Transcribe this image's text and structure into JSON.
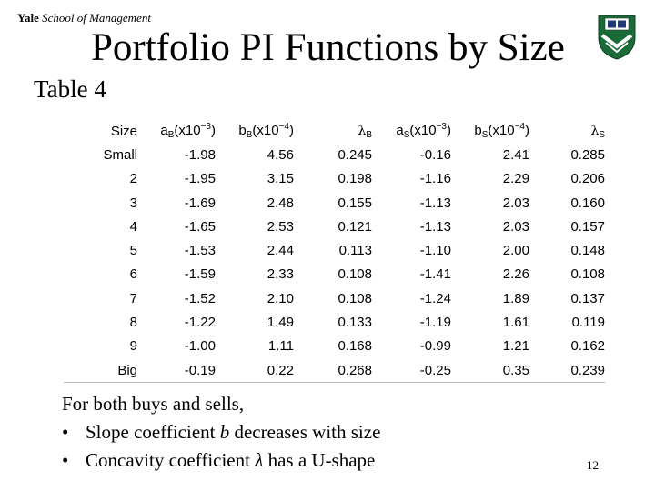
{
  "brand": {
    "bold": "Yale",
    "italic": "School of Management"
  },
  "title": "Portfolio PI Functions by Size",
  "subtitle": "Table 4",
  "table": {
    "headers": {
      "size": "Size",
      "aB": {
        "base": "a",
        "sub": "B",
        "pre": "(x10",
        "sup": "−3",
        "post": ")"
      },
      "bB": {
        "base": "b",
        "sub": "B",
        "pre": "(x10",
        "sup": "−4",
        "post": ")"
      },
      "lamB": {
        "base": "λ",
        "sub": "B"
      },
      "aS": {
        "base": "a",
        "sub": "S",
        "pre": "(x10",
        "sup": "−3",
        "post": ")"
      },
      "bS": {
        "base": "b",
        "sub": "S",
        "pre": "(x10",
        "sup": "−4",
        "post": ")"
      },
      "lamS": {
        "base": "λ",
        "sub": "S"
      }
    },
    "rows": [
      [
        "Small",
        "-1.98",
        "4.56",
        "0.245",
        "-0.16",
        "2.41",
        "0.285"
      ],
      [
        "2",
        "-1.95",
        "3.15",
        "0.198",
        "-1.16",
        "2.29",
        "0.206"
      ],
      [
        "3",
        "-1.69",
        "2.48",
        "0.155",
        "-1.13",
        "2.03",
        "0.160"
      ],
      [
        "4",
        "-1.65",
        "2.53",
        "0.121",
        "-1.13",
        "2.03",
        "0.157"
      ],
      [
        "5",
        "-1.53",
        "2.44",
        "0.113",
        "-1.10",
        "2.00",
        "0.148"
      ],
      [
        "6",
        "-1.59",
        "2.33",
        "0.108",
        "-1.41",
        "2.26",
        "0.108"
      ],
      [
        "7",
        "-1.52",
        "2.10",
        "0.108",
        "-1.24",
        "1.89",
        "0.137"
      ],
      [
        "8",
        "-1.22",
        "1.49",
        "0.133",
        "-1.19",
        "1.61",
        "0.119"
      ],
      [
        "9",
        "-1.00",
        "1.11",
        "0.168",
        "-0.99",
        "1.21",
        "0.162"
      ],
      [
        "Big",
        "-0.19",
        "0.22",
        "0.268",
        "-0.25",
        "0.35",
        "0.239"
      ]
    ]
  },
  "notes": {
    "intro": "For both buys and sells,",
    "bullet": "•",
    "items": [
      {
        "before": "Slope coefficient ",
        "var": "b",
        "after": " decreases with size"
      },
      {
        "before": "Concavity coefficient ",
        "var": "λ",
        "after": " has a U-shape"
      }
    ]
  },
  "page_number": "12",
  "colors": {
    "crest_green": "#1b6b3a",
    "crest_blue": "#1f3a78",
    "rule": "#bdbdbd"
  }
}
